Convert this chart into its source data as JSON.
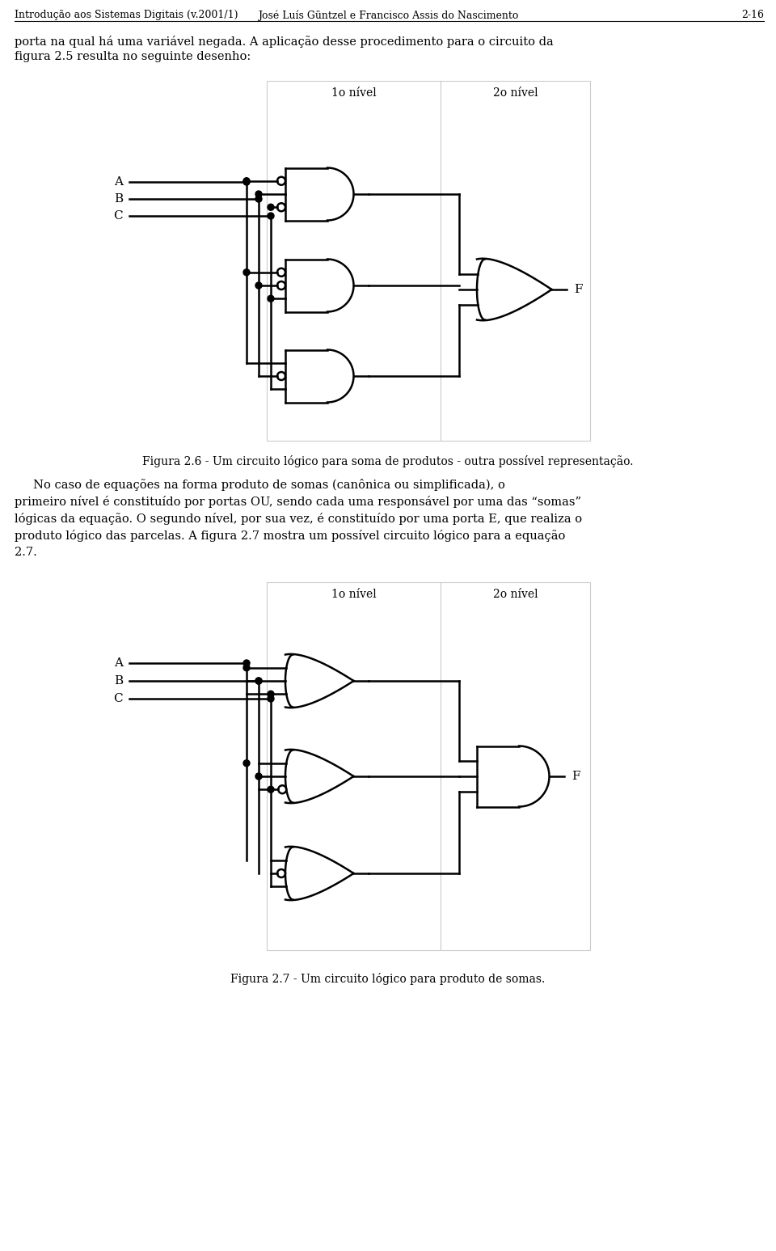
{
  "page_header_left": "Introdução aos Sistemas Digitais (v.2001/1)",
  "page_header_center": "José Luís Güntzel e Francisco Assis do Nascimento",
  "page_header_right": "2-16",
  "text1": "porta na qual há uma variável negada. A aplicação desse procedimento para o circuito da",
  "text2": "figura 2.5 resulta no seguinte desenho:",
  "fig1_caption": "Figura 2.6 - Um circuito lógico para soma de produtos - outra possível representação.",
  "para_line1": "     No caso de equações na forma produto de somas (canônica ou simplificada), o",
  "para_line2": "primeiro nível é constituído por portas OU, sendo cada uma responsável por uma das “somas”",
  "para_line3": "lógicas da equação. O segundo nível, por sua vez, é constituído por uma porta E, que realiza o",
  "para_line4": "produto lógico das parcelas. A figura 2.7 mostra um possível circuito lógico para a equação",
  "para_line5": "2.7.",
  "fig2_caption": "Figura 2.7 - Um circuito lógico para produto de somas.",
  "label_1o_nivel": "1o nível",
  "label_2o_nivel": "2o nível",
  "bg_color": "#ffffff",
  "text_color": "#000000"
}
